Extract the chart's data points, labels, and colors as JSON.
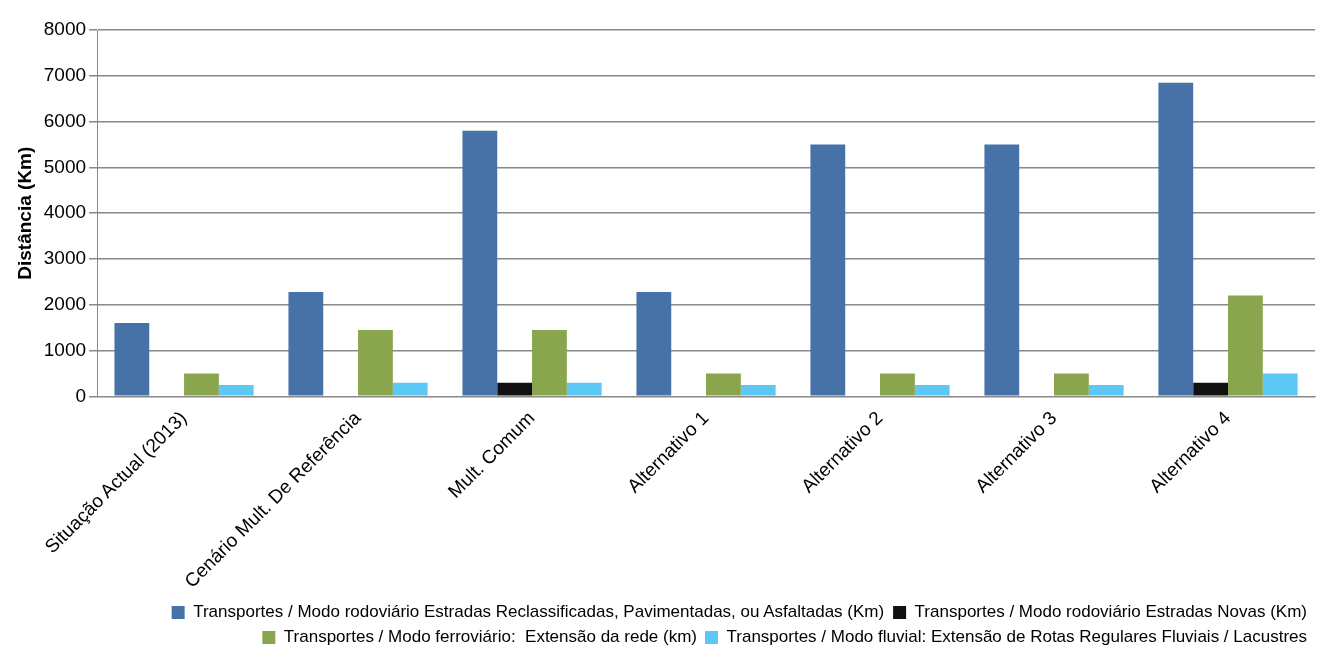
{
  "chart_data": {
    "type": "bar",
    "ylabel": "Distância (Km)",
    "categories": [
      "Situação Actual (2013)",
      "Cenário Mult. De Referência",
      "Mult. Comum",
      "Alternativo 1",
      "Alternativo 2",
      "Alternativo 3",
      "Alternativo 4"
    ],
    "series": [
      {
        "name": "Transportes / Modo rodoviário Estradas Reclassificadas, Pavimentadas, ou Asfaltadas (Km)",
        "color": "#4672a8",
        "values": [
          1600,
          2280,
          5800,
          2280,
          5500,
          5500,
          6850
        ]
      },
      {
        "name": "Transportes / Modo rodoviário Estradas Novas (Km)",
        "color": "#111111",
        "values": [
          null,
          null,
          300,
          null,
          null,
          null,
          300
        ]
      },
      {
        "name": "Transportes / Modo ferroviário:  Extensão da rede (km)",
        "color": "#89a54e",
        "values": [
          500,
          1450,
          1450,
          500,
          500,
          500,
          2200
        ]
      },
      {
        "name": "Transportes / Modo fluvial: Extensão de Rotas Regulares Fluviais / Lacustres",
        "color": "#5bc8f5",
        "values": [
          250,
          300,
          300,
          250,
          250,
          250,
          500
        ]
      }
    ],
    "ylim": [
      0,
      8000
    ],
    "yticks": [
      0,
      1000,
      2000,
      3000,
      4000,
      5000,
      6000,
      7000,
      8000
    ],
    "grid": "y",
    "legend": "bottom right"
  }
}
